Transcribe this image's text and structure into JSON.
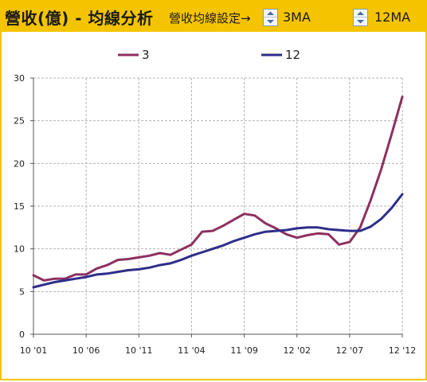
{
  "header": {
    "title": "營收(億) - 均線分析",
    "ma_setting_label": "營收均線設定→",
    "ma_short": "3MA",
    "ma_long": "12MA"
  },
  "colors": {
    "header_bg": "#f5c400",
    "series_3": "#8e3060",
    "series_12": "#2e2e8a"
  },
  "chart_data": {
    "type": "line",
    "x_tick_labels": [
      "10 '01",
      "10 '06",
      "10 '11",
      "11 '04",
      "11 '09",
      "12 '02",
      "12 '07",
      "12 '12"
    ],
    "y_tick_labels": [
      "0",
      "5",
      "10",
      "15",
      "20",
      "25",
      "30"
    ],
    "ylim": [
      0,
      30
    ],
    "grid": true,
    "legend_position": "top-center",
    "series": [
      {
        "name": "3",
        "values": [
          6.9,
          6.3,
          6.5,
          6.5,
          7.0,
          7.0,
          7.7,
          8.1,
          8.7,
          8.8,
          9.0,
          9.2,
          9.5,
          9.3,
          9.9,
          10.5,
          12.0,
          12.1,
          12.7,
          13.4,
          14.1,
          13.9,
          13.0,
          12.4,
          11.7,
          11.3,
          11.6,
          11.8,
          11.7,
          10.5,
          10.8,
          12.5,
          15.7,
          19.3,
          23.5,
          27.8
        ]
      },
      {
        "name": "12",
        "values": [
          5.5,
          5.8,
          6.1,
          6.3,
          6.5,
          6.7,
          7.0,
          7.1,
          7.3,
          7.5,
          7.6,
          7.8,
          8.1,
          8.3,
          8.7,
          9.2,
          9.6,
          10.0,
          10.4,
          10.9,
          11.3,
          11.7,
          12.0,
          12.1,
          12.2,
          12.4,
          12.5,
          12.5,
          12.3,
          12.2,
          12.1,
          12.1,
          12.6,
          13.5,
          14.8,
          16.4
        ]
      }
    ]
  }
}
